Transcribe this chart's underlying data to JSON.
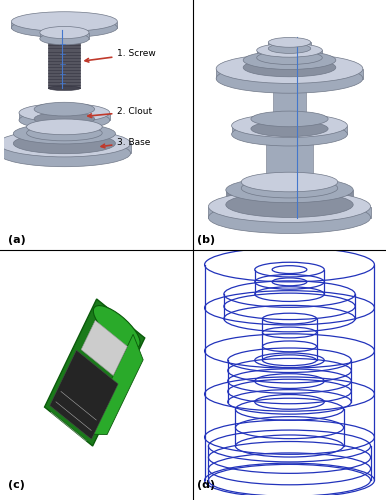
{
  "label_a": "(a)",
  "label_b": "(b)",
  "label_c": "(c)",
  "label_d": "(d)",
  "arrow_color": "#c0392b",
  "blue_line_color": "#4477cc",
  "gray_light": "#c8cedd",
  "gray_mid": "#a0aabb",
  "gray_dark": "#707888",
  "gray_shadow": "#8890a0",
  "green_color": "#1a7a1a",
  "green_light": "#2aaa2a",
  "teal_bg": "#4ab8b0",
  "wire_color": "#2233bb",
  "figure_width": 3.86,
  "figure_height": 5.0,
  "dpi": 100
}
